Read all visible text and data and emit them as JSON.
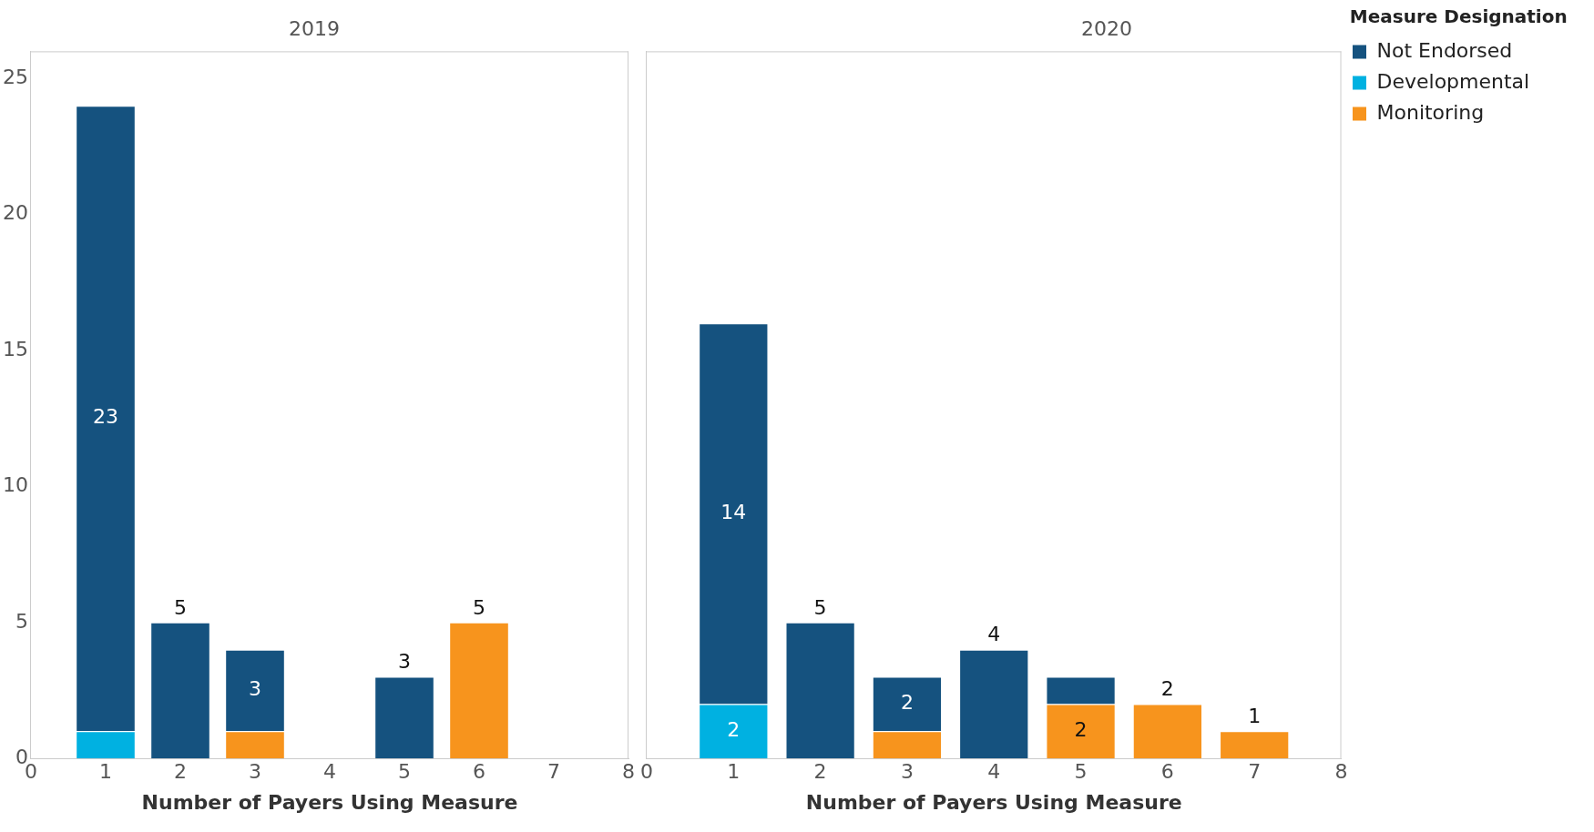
{
  "chart_data": [
    {
      "type": "bar",
      "title": "2019",
      "xlabel": "Number of Payers Using Measure",
      "x": [
        1,
        2,
        3,
        5,
        6
      ],
      "xlim": [
        0,
        8
      ],
      "xticks": [
        0,
        1,
        2,
        3,
        4,
        5,
        6,
        7,
        8
      ],
      "ylim": [
        0,
        26
      ],
      "yticks": [
        0,
        5,
        10,
        15,
        20,
        25
      ],
      "stacked": true,
      "grid": false,
      "legend": false,
      "series": [
        {
          "color": "#f7941d",
          "values": [
            null,
            null,
            1,
            null,
            5
          ],
          "value_labels": [
            null,
            null,
            null,
            null,
            "5"
          ]
        },
        {
          "color": "#00b1e1",
          "values": [
            1,
            null,
            null,
            null,
            null
          ],
          "value_labels": [
            null,
            null,
            null,
            null,
            null
          ]
        },
        {
          "color": "#15527f",
          "values": [
            23,
            5,
            3,
            3,
            null
          ],
          "value_labels": [
            "23",
            "5",
            "3",
            "3",
            null
          ]
        }
      ]
    },
    {
      "type": "bar",
      "title": "2020",
      "xlabel": "Number of Payers Using Measure",
      "x": [
        1,
        2,
        3,
        4,
        5,
        6,
        7
      ],
      "xlim": [
        0,
        8
      ],
      "xticks": [
        0,
        1,
        2,
        3,
        4,
        5,
        6,
        7,
        8
      ],
      "ylim": [
        0,
        26
      ],
      "yticks": [
        0,
        5,
        10,
        15,
        20,
        25
      ],
      "tick_labels": "x",
      "stacked": true,
      "grid": false,
      "legend": "right",
      "legend_title": "Measure Designation",
      "series": [
        {
          "name": "Monitoring",
          "color": "#f7941d",
          "values": [
            null,
            null,
            1,
            null,
            2,
            2,
            1
          ],
          "value_labels": [
            null,
            null,
            null,
            null,
            "2",
            "2",
            "1"
          ]
        },
        {
          "name": "Developmental",
          "color": "#00b1e1",
          "values": [
            2,
            null,
            null,
            null,
            null,
            null,
            null
          ],
          "value_labels": [
            "2",
            null,
            null,
            null,
            null,
            null,
            null
          ]
        },
        {
          "name": "Not Endorsed",
          "color": "#15527f",
          "values": [
            14,
            5,
            2,
            4,
            1,
            null,
            null
          ],
          "value_labels": [
            "14",
            "5",
            "2",
            "4",
            null,
            null,
            null
          ]
        }
      ]
    }
  ]
}
